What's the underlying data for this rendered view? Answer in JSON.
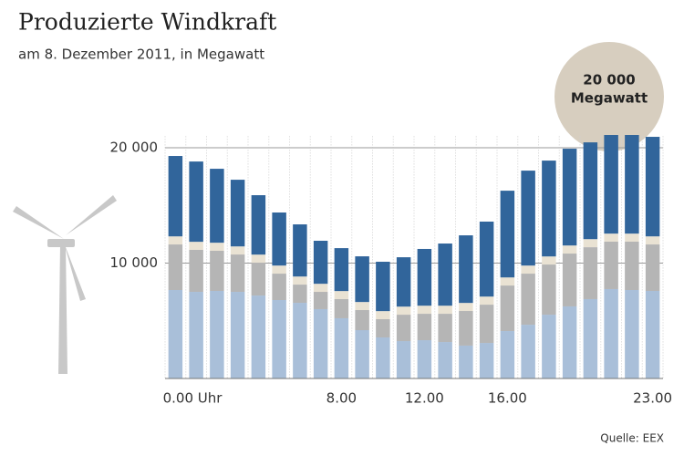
{
  "chart_data": {
    "type": "stacked_bar",
    "title": "Produzierte Windkraft",
    "subtitle": "am 8. Dezember 2011, in Megawatt",
    "source": "Quelle: EEX",
    "annotation": [
      "20 000",
      "Megawatt"
    ],
    "categories": [
      "0.00 Uhr",
      null,
      null,
      null,
      null,
      null,
      null,
      null,
      "8.00",
      null,
      null,
      null,
      "12.00",
      null,
      null,
      null,
      "16.00",
      null,
      null,
      null,
      null,
      null,
      null,
      "23.00"
    ],
    "series": [
      {
        "color": "#a9bfd9",
        "values": [
          7670,
          7510,
          7590,
          7510,
          7190,
          6800,
          6560,
          6010,
          5220,
          4190,
          3560,
          3240,
          3320,
          3160,
          2850,
          3080,
          4110,
          4660,
          5530,
          6250,
          6880,
          7750,
          7670,
          7590
        ]
      },
      {
        "color": "#b5b5b5",
        "values": [
          3950,
          3640,
          3480,
          3240,
          2850,
          2290,
          1580,
          1500,
          1660,
          1740,
          1580,
          2290,
          2290,
          2450,
          3000,
          3320,
          3950,
          4430,
          4350,
          4580,
          4500,
          4110,
          4190,
          4030
        ]
      },
      {
        "color": "#e9e2d3",
        "values": [
          700,
          700,
          700,
          700,
          700,
          700,
          700,
          700,
          700,
          700,
          700,
          700,
          700,
          700,
          700,
          700,
          700,
          700,
          700,
          700,
          700,
          700,
          700,
          700
        ]
      },
      {
        "color": "#31659b",
        "values": [
          6970,
          6960,
          6410,
          5780,
          5150,
          4600,
          4520,
          3730,
          3720,
          3960,
          4280,
          4280,
          4920,
          5390,
          5860,
          6500,
          7520,
          8230,
          8310,
          8390,
          8390,
          8550,
          8550,
          8630
        ]
      }
    ],
    "ylim": [
      0,
      21000
    ],
    "yticks": [
      {
        "value": 10000,
        "label": "10 000"
      },
      {
        "value": 20000,
        "label": "20 000"
      }
    ],
    "grid": true
  }
}
